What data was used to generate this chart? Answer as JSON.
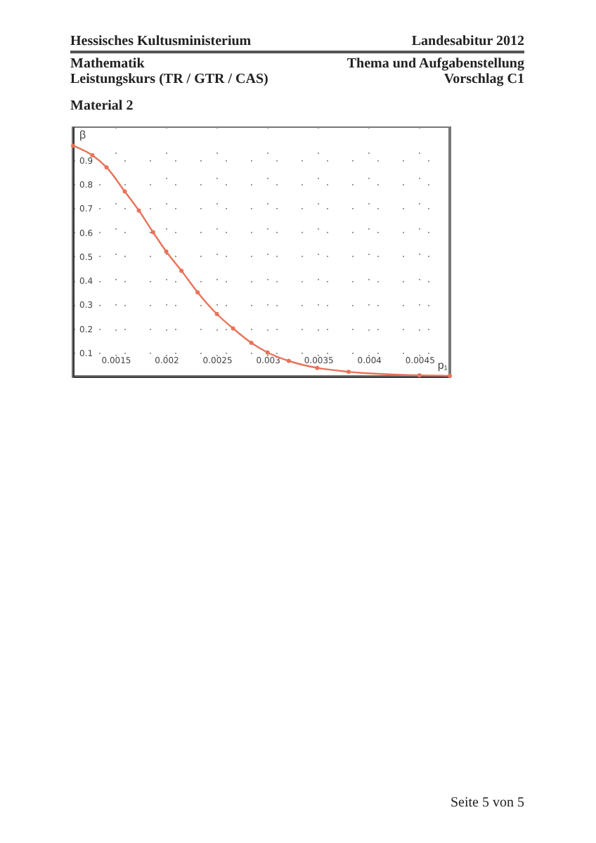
{
  "chart_data": {
    "type": "line",
    "title": "Material 2",
    "xlabel": "p₁",
    "ylabel": "β",
    "annotations": [
      "Hessisches Kultusministerium",
      "Landesabitur 2012",
      "Mathematik",
      "Thema und Aufgabenstellung",
      "Leistungskurs (TR / GTR / CAS)",
      "Vorschlag C1",
      "Seite 5 von 5"
    ],
    "x": [
      0.00108,
      0.00127,
      0.00141,
      0.00159,
      0.00173,
      0.00187,
      0.002,
      0.00215,
      0.00231,
      0.0025,
      0.00266,
      0.00284,
      0.003,
      0.00321,
      0.00349,
      0.0038,
      0.0045,
      0.0048
    ],
    "series": [
      {
        "color": "#e8735a",
        "values": [
          0.96,
          0.92,
          0.87,
          0.77,
          0.69,
          0.6,
          0.52,
          0.44,
          0.35,
          0.26,
          0.2,
          0.14,
          0.1,
          0.065,
          0.036,
          0.02,
          0.005,
          0.003
        ]
      }
    ],
    "xlim": [
      0.00108,
      0.0048
    ],
    "ylim": [
      0,
      1.04
    ],
    "xticks": [
      0.0015,
      0.002,
      0.0025,
      0.003,
      0.0035,
      0.004,
      0.0045
    ],
    "yticks": [
      0.1,
      0.2,
      0.3,
      0.4,
      0.5,
      0.6,
      0.7,
      0.8,
      0.9
    ],
    "grid": true,
    "marker": "circle",
    "line_style": "solid",
    "legend": false
  }
}
